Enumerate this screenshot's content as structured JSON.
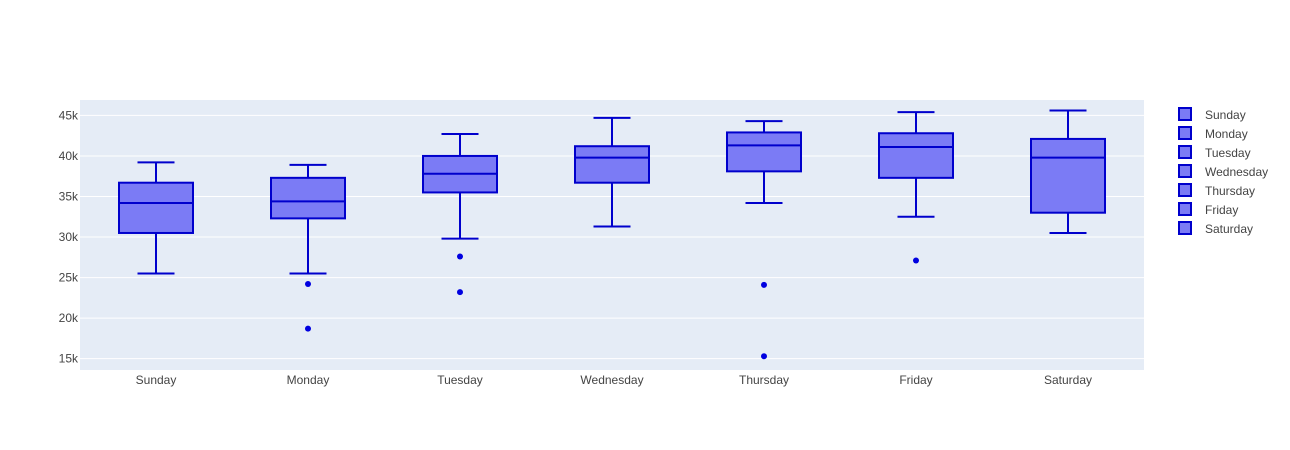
{
  "chart_data": {
    "type": "box",
    "categories": [
      "Sunday",
      "Monday",
      "Tuesday",
      "Wednesday",
      "Thursday",
      "Friday",
      "Saturday"
    ],
    "series": [
      {
        "name": "Sunday",
        "lower_fence": 25500,
        "q1": 30500,
        "median": 34200,
        "q3": 36700,
        "upper_fence": 39200,
        "outliers": []
      },
      {
        "name": "Monday",
        "lower_fence": 25500,
        "q1": 32300,
        "median": 34400,
        "q3": 37300,
        "upper_fence": 38900,
        "outliers": [
          24200,
          18700
        ]
      },
      {
        "name": "Tuesday",
        "lower_fence": 29800,
        "q1": 35500,
        "median": 37800,
        "q3": 40000,
        "upper_fence": 42700,
        "outliers": [
          27600,
          23200
        ]
      },
      {
        "name": "Wednesday",
        "lower_fence": 31300,
        "q1": 36700,
        "median": 39800,
        "q3": 41200,
        "upper_fence": 44700,
        "outliers": []
      },
      {
        "name": "Thursday",
        "lower_fence": 34200,
        "q1": 38100,
        "median": 41300,
        "q3": 42900,
        "upper_fence": 44300,
        "outliers": [
          24100,
          15300
        ]
      },
      {
        "name": "Friday",
        "lower_fence": 32500,
        "q1": 37300,
        "median": 41100,
        "q3": 42800,
        "upper_fence": 45400,
        "outliers": [
          27100
        ]
      },
      {
        "name": "Saturday",
        "lower_fence": 30500,
        "q1": 33000,
        "median": 39800,
        "q3": 42100,
        "upper_fence": 45600,
        "outliers": []
      }
    ],
    "y_ticks": [
      15000,
      20000,
      25000,
      30000,
      35000,
      40000,
      45000
    ],
    "y_tick_labels": [
      "15k",
      "20k",
      "25k",
      "30k",
      "35k",
      "40k",
      "45k"
    ],
    "ylim": [
      13600,
      46900
    ],
    "grid": true,
    "legend_position": "right",
    "colors": {
      "box_fill": "#7b7bf5",
      "box_line": "#0000cc",
      "outlier": "#0000e0",
      "plot_bg": "#e5ecf6",
      "grid": "#ffffff"
    }
  }
}
